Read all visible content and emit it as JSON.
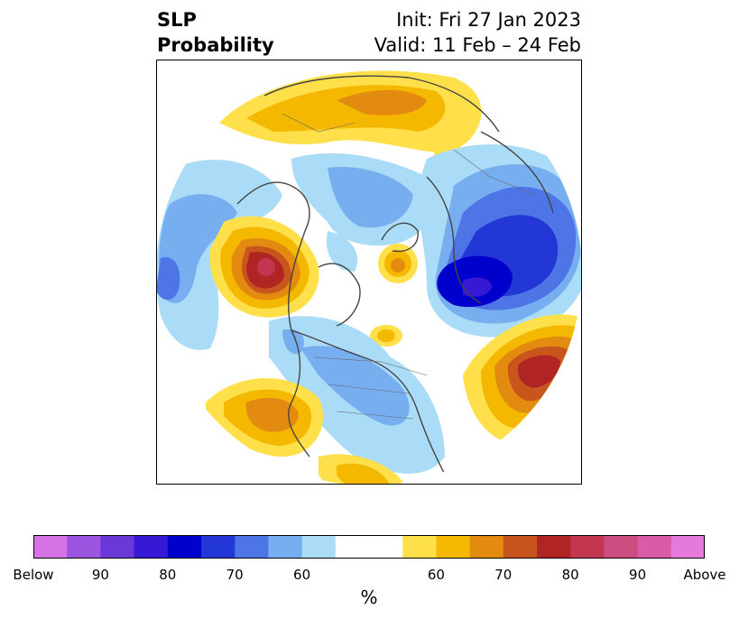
{
  "header": {
    "title_line1": "SLP",
    "title_line2": "Probability",
    "init": "Init: Fri 27 Jan 2023",
    "valid": "Valid: 11 Feb – 24 Feb"
  },
  "colorbar": {
    "unit": "%",
    "colors": [
      "#d773e6",
      "#9b55e0",
      "#6a38d8",
      "#3619d4",
      "#0000cc",
      "#2336d6",
      "#4d75e6",
      "#77aef0",
      "#aadcf8",
      "#ffffff",
      "#ffffff",
      "#ffe04a",
      "#f5b800",
      "#e38b10",
      "#c8561c",
      "#b02424",
      "#c2364f",
      "#cc4e80",
      "#d95ca6",
      "#e67ada"
    ],
    "ticks": [
      {
        "label": "Below",
        "index": 0
      },
      {
        "label": "90",
        "index": 2
      },
      {
        "label": "80",
        "index": 4
      },
      {
        "label": "70",
        "index": 6
      },
      {
        "label": "60",
        "index": 8
      },
      {
        "label": "60",
        "index": 12
      },
      {
        "label": "70",
        "index": 14
      },
      {
        "label": "80",
        "index": 16
      },
      {
        "label": "90",
        "index": 18
      },
      {
        "label": "Above",
        "index": 20
      }
    ]
  }
}
